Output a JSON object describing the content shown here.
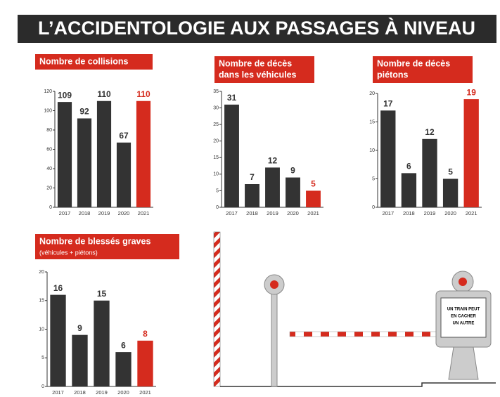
{
  "title": "L’ACCIDENTOLOGIE AUX PASSAGES À NIVEAU",
  "chart_data": [
    {
      "type": "bar",
      "title": [
        "Nombre de collisions"
      ],
      "categories": [
        "2017",
        "2018",
        "2019",
        "2020",
        "2021"
      ],
      "values": [
        109,
        92,
        110,
        67,
        110
      ],
      "colors": [
        "#333333",
        "#333333",
        "#333333",
        "#333333",
        "#d52b1e"
      ],
      "ylim": [
        0,
        120
      ],
      "yticks": [
        0,
        20,
        40,
        60,
        80,
        100,
        120
      ]
    },
    {
      "type": "bar",
      "title": [
        "Nombre de décès",
        "dans les véhicules"
      ],
      "categories": [
        "2017",
        "2018",
        "2019",
        "2020",
        "2021"
      ],
      "values": [
        31,
        7,
        12,
        9,
        5
      ],
      "colors": [
        "#333333",
        "#333333",
        "#333333",
        "#333333",
        "#d52b1e"
      ],
      "ylim": [
        0,
        35
      ],
      "yticks": [
        0,
        5,
        10,
        15,
        20,
        25,
        30,
        35
      ]
    },
    {
      "type": "bar",
      "title": [
        "Nombre de décès",
        "piétons"
      ],
      "categories": [
        "2017",
        "2018",
        "2019",
        "2020",
        "2021"
      ],
      "values": [
        17,
        6,
        12,
        5,
        19
      ],
      "colors": [
        "#333333",
        "#333333",
        "#333333",
        "#333333",
        "#d52b1e"
      ],
      "ylim": [
        0,
        20
      ],
      "yticks": [
        0,
        5,
        10,
        15,
        20
      ]
    },
    {
      "type": "bar",
      "title": [
        "Nombre de blessés graves"
      ],
      "subtitle": "(véhicules + piétons)",
      "categories": [
        "2017",
        "2018",
        "2019",
        "2020",
        "2021"
      ],
      "values": [
        16,
        9,
        15,
        6,
        8
      ],
      "colors": [
        "#333333",
        "#333333",
        "#333333",
        "#333333",
        "#d52b1e"
      ],
      "ylim": [
        0,
        20
      ],
      "yticks": [
        0,
        5,
        10,
        15,
        20
      ]
    }
  ],
  "illustration": {
    "sign": [
      "UN TRAIN PEUT",
      "EN CACHER",
      "UN AUTRE"
    ]
  }
}
